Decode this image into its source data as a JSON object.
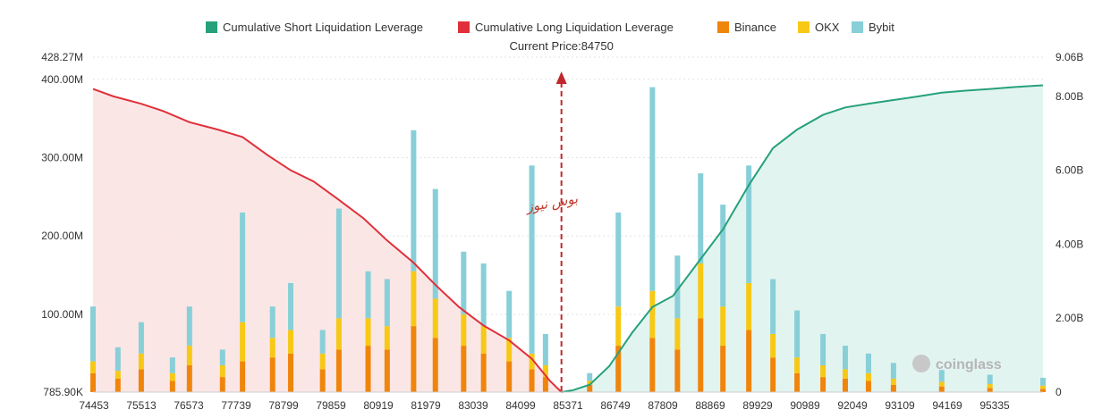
{
  "chart_data": {
    "type": "bar",
    "title": "",
    "current_price_label": "Current Price:84750",
    "current_price": 84750,
    "x_tick_labels": [
      "74453",
      "75513",
      "76573",
      "77739",
      "78799",
      "79859",
      "80919",
      "81979",
      "83039",
      "84099",
      "85371",
      "86749",
      "87809",
      "88869",
      "89929",
      "90989",
      "92049",
      "93109",
      "94169",
      "95335"
    ],
    "x_range": [
      74453,
      95335
    ],
    "left_axis": {
      "tick_labels": [
        "785.90K",
        "100.00M",
        "200.00M",
        "300.00M",
        "400.00M",
        "428.27M"
      ],
      "tick_values": [
        0.7859,
        100,
        200,
        300,
        400,
        428.27
      ],
      "unit": "M",
      "range": [
        0.7859,
        428.27
      ]
    },
    "right_axis": {
      "tick_labels": [
        "0",
        "2.00B",
        "4.00B",
        "6.00B",
        "8.00B",
        "9.06B"
      ],
      "tick_values": [
        0,
        2,
        4,
        6,
        8,
        9.06
      ],
      "unit": "B",
      "range": [
        0,
        9.06
      ]
    },
    "legend": [
      {
        "name": "Cumulative Short Liquidation Leverage",
        "color": "#26a17b"
      },
      {
        "name": "Cumulative Long Liquidation Leverage",
        "color": "#e0303a"
      },
      {
        "name": "Binance",
        "color": "#f0850c"
      },
      {
        "name": "OKX",
        "color": "#f7c916"
      },
      {
        "name": "Bybit",
        "color": "#88cfd8"
      }
    ],
    "series": [
      {
        "name": "Cumulative Long Liquidation Leverage",
        "axis": "right",
        "x": [
          74453,
          74900,
          75513,
          76000,
          76573,
          77200,
          77739,
          78300,
          78799,
          79300,
          79859,
          80400,
          80919,
          81500,
          81979,
          82500,
          83039,
          83600,
          84099,
          84500,
          84750
        ],
        "values": [
          8.2,
          8.0,
          7.8,
          7.6,
          7.3,
          7.1,
          6.9,
          6.4,
          6.0,
          5.7,
          5.2,
          4.7,
          4.1,
          3.5,
          2.9,
          2.3,
          1.8,
          1.4,
          0.9,
          0.3,
          0.0
        ]
      },
      {
        "name": "Cumulative Short Liquidation Leverage",
        "axis": "right",
        "x": [
          84750,
          85000,
          85371,
          85800,
          86300,
          86749,
          87200,
          87809,
          88300,
          88869,
          89400,
          89929,
          90500,
          90989,
          91500,
          92049,
          92600,
          93109,
          93600,
          94169,
          94700,
          95335
        ],
        "values": [
          0.0,
          0.05,
          0.2,
          0.7,
          1.6,
          2.3,
          2.6,
          3.6,
          4.4,
          5.6,
          6.6,
          7.1,
          7.5,
          7.7,
          7.8,
          7.9,
          8.0,
          8.1,
          8.15,
          8.2,
          8.25,
          8.3
        ]
      },
      {
        "name": "Binance",
        "axis": "left",
        "x": [
          74453,
          75000,
          75513,
          76200,
          76573,
          77300,
          77739,
          78400,
          78799,
          79500,
          79859,
          80500,
          80919,
          81500,
          81979,
          82600,
          83039,
          83600,
          84099,
          84400,
          85371,
          86000,
          86749,
          87300,
          87809,
          88300,
          88869,
          89400,
          89929,
          90500,
          90989,
          91500,
          92049,
          93109,
          94169,
          95335
        ],
        "values": [
          25,
          18,
          30,
          15,
          35,
          20,
          40,
          45,
          50,
          30,
          55,
          60,
          55,
          85,
          70,
          60,
          50,
          40,
          30,
          20,
          10,
          60,
          70,
          55,
          95,
          60,
          80,
          45,
          25,
          20,
          18,
          15,
          10,
          8,
          6,
          5
        ]
      },
      {
        "name": "OKX",
        "axis": "left",
        "x": [
          74453,
          75000,
          75513,
          76200,
          76573,
          77300,
          77739,
          78400,
          78799,
          79500,
          79859,
          80500,
          80919,
          81500,
          81979,
          82600,
          83039,
          83600,
          84099,
          84400,
          85371,
          86000,
          86749,
          87300,
          87809,
          88300,
          88869,
          89400,
          89929,
          90500,
          90989,
          91500,
          92049,
          93109,
          94169,
          95335
        ],
        "values": [
          15,
          10,
          20,
          10,
          25,
          15,
          50,
          25,
          30,
          20,
          40,
          35,
          30,
          70,
          50,
          40,
          35,
          30,
          20,
          15,
          5,
          50,
          60,
          40,
          70,
          50,
          60,
          30,
          20,
          15,
          12,
          10,
          8,
          6,
          5,
          4
        ]
      },
      {
        "name": "Bybit",
        "axis": "left",
        "x": [
          74453,
          75000,
          75513,
          76200,
          76573,
          77300,
          77739,
          78400,
          78799,
          79500,
          79859,
          80500,
          80919,
          81500,
          81979,
          82600,
          83039,
          83600,
          84099,
          84400,
          85371,
          86000,
          86749,
          87300,
          87809,
          88300,
          88869,
          89400,
          89929,
          90500,
          90989,
          91500,
          92049,
          93109,
          94169,
          95335
        ],
        "values": [
          70,
          30,
          40,
          20,
          50,
          20,
          140,
          40,
          60,
          30,
          140,
          60,
          60,
          180,
          140,
          80,
          80,
          60,
          240,
          40,
          10,
          120,
          260,
          80,
          115,
          130,
          150,
          70,
          60,
          40,
          30,
          25,
          20,
          15,
          12,
          10
        ]
      }
    ]
  },
  "watermark": {
    "text": "coinglass"
  },
  "stamp": {
    "text": "بوس نیوز"
  }
}
